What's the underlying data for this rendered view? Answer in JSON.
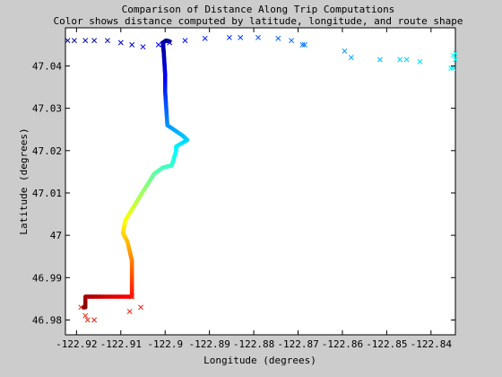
{
  "chart_data": {
    "type": "scatter",
    "title": "Comparison of Distance Along Trip Computations",
    "subtitle": "Color shows distance computed by latitude, longitude, and route shape",
    "xlabel": "Longitude (degrees)",
    "ylabel": "Latitude (degrees)",
    "xlim": [
      -122.9225,
      -122.8345
    ],
    "ylim": [
      46.9765,
      47.049
    ],
    "x_ticks": [
      -122.92,
      -122.91,
      -122.9,
      -122.89,
      -122.88,
      -122.87,
      -122.86,
      -122.85,
      -122.84
    ],
    "x_tick_labels": [
      "-122.92",
      "-122.91",
      "-122.9",
      "-122.89",
      "-122.88",
      "-122.87",
      "-122.86",
      "-122.85",
      "-122.84"
    ],
    "y_ticks": [
      46.98,
      46.99,
      47.0,
      47.01,
      47.02,
      47.03,
      47.04
    ],
    "y_tick_labels": [
      "46.98",
      "46.99",
      "47",
      "47.01",
      "47.02",
      "47.03",
      "47.04"
    ],
    "grid": false,
    "series": [
      {
        "marker": "line",
        "points": [
          [
            -122.9185,
            46.983
          ],
          [
            -122.918,
            46.983
          ],
          [
            -122.918,
            46.9855
          ],
          [
            -122.9145,
            46.9855
          ],
          [
            -122.9075,
            46.9855
          ],
          [
            -122.9075,
            46.994
          ],
          [
            -122.9085,
            46.9985
          ],
          [
            -122.9095,
            47.0005
          ],
          [
            -122.909,
            47.0035
          ],
          [
            -122.9055,
            47.0095
          ],
          [
            -122.9025,
            47.0145
          ],
          [
            -122.9005,
            47.016
          ],
          [
            -122.8985,
            47.0165
          ],
          [
            -122.8975,
            47.02
          ],
          [
            -122.8975,
            47.021
          ],
          [
            -122.895,
            47.0225
          ],
          [
            -122.896,
            47.0235
          ],
          [
            -122.8995,
            47.026
          ],
          [
            -122.9,
            47.034
          ],
          [
            -122.9,
            47.038
          ],
          [
            -122.9003,
            47.043
          ],
          [
            -122.9005,
            47.0455
          ],
          [
            -122.8998,
            47.046
          ],
          [
            -122.899,
            47.0458
          ]
        ]
      },
      {
        "marker": "x",
        "points": [
          [
            -122.919,
            46.983
          ],
          [
            -122.918,
            46.981
          ],
          [
            -122.9175,
            46.98
          ],
          [
            -122.916,
            46.98
          ],
          [
            -122.908,
            46.982
          ],
          [
            -122.9055,
            46.983
          ],
          [
            -122.9075,
            46.9855
          ],
          [
            -122.922,
            47.046
          ],
          [
            -122.9205,
            47.046
          ],
          [
            -122.918,
            47.046
          ],
          [
            -122.916,
            47.046
          ],
          [
            -122.913,
            47.046
          ],
          [
            -122.91,
            47.0455
          ],
          [
            -122.9075,
            47.045
          ],
          [
            -122.905,
            47.0445
          ],
          [
            -122.9015,
            47.045
          ],
          [
            -122.9005,
            47.0452
          ],
          [
            -122.899,
            47.0455
          ],
          [
            -122.8955,
            47.046
          ],
          [
            -122.891,
            47.0465
          ],
          [
            -122.8855,
            47.0467
          ],
          [
            -122.883,
            47.0467
          ],
          [
            -122.879,
            47.0467
          ],
          [
            -122.8745,
            47.0465
          ],
          [
            -122.8715,
            47.046
          ],
          [
            -122.869,
            47.045
          ],
          [
            -122.8685,
            47.045
          ],
          [
            -122.8595,
            47.0435
          ],
          [
            -122.858,
            47.042
          ],
          [
            -122.8515,
            47.0415
          ],
          [
            -122.847,
            47.0415
          ],
          [
            -122.8455,
            47.0415
          ],
          [
            -122.8425,
            47.041
          ],
          [
            -122.8355,
            47.0395
          ],
          [
            -122.835,
            47.0425
          ],
          [
            -122.8345,
            47.043
          ],
          [
            -122.8345,
            47.0415
          ],
          [
            -122.835,
            47.0395
          ]
        ]
      }
    ],
    "colormap": "jet"
  }
}
